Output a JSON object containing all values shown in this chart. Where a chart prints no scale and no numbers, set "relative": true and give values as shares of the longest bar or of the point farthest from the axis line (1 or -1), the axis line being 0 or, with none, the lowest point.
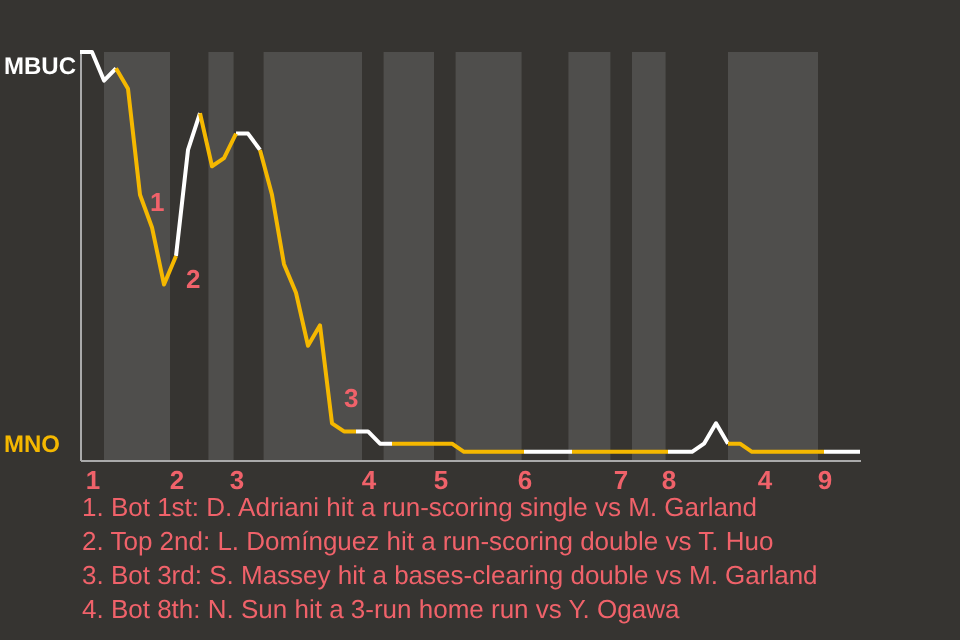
{
  "chart_data": {
    "type": "line",
    "relative": true,
    "categories": [
      null,
      "1",
      null,
      null,
      null,
      null,
      null,
      null,
      "2",
      null,
      null,
      null,
      null,
      "3",
      null,
      null,
      null,
      null,
      null,
      null,
      null,
      null,
      null,
      null,
      "4",
      null,
      null,
      null,
      null,
      null,
      "5",
      null,
      null,
      null,
      null,
      null,
      null,
      "6",
      null,
      null,
      null,
      null,
      null,
      null,
      null,
      "7",
      null,
      null,
      null,
      "8",
      null,
      null,
      null,
      null,
      null,
      null,
      null,
      "4",
      null,
      null,
      null,
      null,
      "9",
      null,
      null,
      null
    ],
    "series": [
      {
        "color": "#ffffff",
        "values": [
          1,
          1,
          0.93,
          0.96,
          null,
          null,
          null,
          null,
          0.5,
          0.76,
          0.85,
          null,
          null,
          0.8,
          0.8,
          0.76,
          null,
          null,
          null,
          null,
          null,
          null,
          null,
          0.07,
          0.07,
          0.04,
          0.04,
          null,
          null,
          null,
          null,
          null,
          null,
          null,
          null,
          null,
          null,
          0.02,
          0.02,
          0.02,
          0.02,
          0.02,
          null,
          null,
          null,
          null,
          null,
          null,
          null,
          0.02,
          0.02,
          0.02,
          0.04,
          0.09,
          0.04,
          null,
          null,
          null,
          null,
          null,
          null,
          null,
          0.02,
          0.02,
          0.02,
          0.02
        ]
      },
      {
        "color": "#f5b800",
        "values": [
          null,
          null,
          null,
          0.96,
          0.91,
          0.65,
          0.57,
          0.43,
          0.5,
          null,
          0.85,
          0.72,
          0.74,
          0.8,
          null,
          0.76,
          0.65,
          0.48,
          0.41,
          0.28,
          0.33,
          0.09,
          0.07,
          0.07,
          null,
          null,
          0.04,
          0.04,
          0.04,
          0.04,
          0.04,
          0.04,
          0.02,
          0.02,
          0.02,
          0.02,
          0.02,
          0.02,
          null,
          null,
          null,
          0.02,
          0.02,
          0.02,
          0.02,
          0.02,
          0.02,
          0.02,
          0.02,
          0.02,
          null,
          null,
          null,
          null,
          0.04,
          0.04,
          0.02,
          0.02,
          0.02,
          0.02,
          0.02,
          0.02,
          0.02,
          null,
          null,
          null
        ]
      }
    ],
    "annotations": [
      "MBUC",
      "1",
      "2",
      "MNO",
      "3",
      "1. Bot 1st: D. Adriani hit a run-scoring single vs M. Garland",
      "2. Top 2nd: L. Domínguez hit a run-scoring double vs T. Huo",
      "3. Bot 3rd: S. Massey hit a bases-clearing double vs M. Garland",
      "4. Bot 8th: N. Sun hit a 3-run home run vs Y. Ogawa"
    ]
  }
}
